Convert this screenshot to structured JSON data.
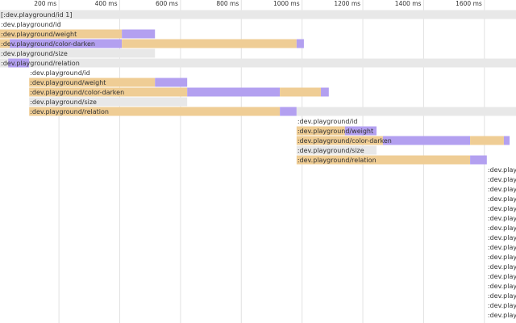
{
  "chart_data": {
    "type": "timeline",
    "xlim": [
      6,
      1704
    ],
    "xticks": [
      {
        "value": 200,
        "label": "200 ms"
      },
      {
        "value": 400,
        "label": "400 ms"
      },
      {
        "value": 600,
        "label": "600 ms"
      },
      {
        "value": 800,
        "label": "800 ms"
      },
      {
        "value": 1000,
        "label": "1000 ms"
      },
      {
        "value": 1200,
        "label": "1200 ms"
      },
      {
        "value": 1400,
        "label": "1400 ms"
      },
      {
        "value": 1600,
        "label": "1600 ms"
      }
    ],
    "grid": true,
    "rows": [
      {
        "label": "[:dev.playground/id 1]",
        "segments": [
          {
            "start": 6,
            "end": 1704,
            "color": "#e8e8e8"
          }
        ]
      },
      {
        "label": ":dev.playground/id",
        "segments": []
      },
      {
        "label": ":dev.playground/weight",
        "segments": [
          {
            "start": 6,
            "end": 407,
            "color": "#efcd95"
          },
          {
            "start": 407,
            "end": 516,
            "color": "#b3a0f0"
          }
        ]
      },
      {
        "label": ":dev.playground/color-darken",
        "segments": [
          {
            "start": 6,
            "end": 38,
            "color": "#efcd95"
          },
          {
            "start": 38,
            "end": 407,
            "color": "#b3a0f0"
          },
          {
            "start": 407,
            "end": 982,
            "color": "#efcd95"
          },
          {
            "start": 982,
            "end": 1006,
            "color": "#b3a0f0"
          }
        ]
      },
      {
        "label": ":dev.playground/size",
        "segments": [
          {
            "start": 6,
            "end": 516,
            "color": "#e8e8e8"
          }
        ]
      },
      {
        "label": ":dev.playground/relation",
        "segments": [
          {
            "start": 6,
            "end": 33,
            "color": "#e8e8e8"
          },
          {
            "start": 33,
            "end": 102,
            "color": "#b3a0f0"
          },
          {
            "start": 102,
            "end": 1704,
            "color": "#e8e8e8"
          }
        ]
      },
      {
        "label": ":dev.playground/id",
        "segments": []
      },
      {
        "label": ":dev.playground/weight",
        "segments": [
          {
            "start": 102,
            "end": 516,
            "color": "#efcd95"
          },
          {
            "start": 516,
            "end": 622,
            "color": "#b3a0f0"
          }
        ]
      },
      {
        "label": ":dev.playground/color-darken",
        "segments": [
          {
            "start": 102,
            "end": 622,
            "color": "#efcd95"
          },
          {
            "start": 622,
            "end": 927,
            "color": "#b3a0f0"
          },
          {
            "start": 927,
            "end": 1062,
            "color": "#efcd95"
          },
          {
            "start": 1062,
            "end": 1088,
            "color": "#b3a0f0"
          }
        ]
      },
      {
        "label": ":dev.playground/size",
        "segments": [
          {
            "start": 102,
            "end": 622,
            "color": "#e8e8e8"
          }
        ]
      },
      {
        "label": ":dev.playground/relation",
        "segments": [
          {
            "start": 102,
            "end": 927,
            "color": "#efcd95"
          },
          {
            "start": 927,
            "end": 982,
            "color": "#b3a0f0"
          },
          {
            "start": 982,
            "end": 1704,
            "color": "#e8e8e8"
          }
        ]
      },
      {
        "label": ":dev.playground/id",
        "segments": []
      },
      {
        "label": ":dev.playground/weight",
        "segments": [
          {
            "start": 982,
            "end": 1141,
            "color": "#efcd95"
          },
          {
            "start": 1141,
            "end": 1245,
            "color": "#b3a0f0"
          }
        ]
      },
      {
        "label": ":dev.playground/color-darken",
        "segments": [
          {
            "start": 982,
            "end": 1266,
            "color": "#efcd95"
          },
          {
            "start": 1266,
            "end": 1553,
            "color": "#b3a0f0"
          },
          {
            "start": 1553,
            "end": 1664,
            "color": "#efcd95"
          },
          {
            "start": 1664,
            "end": 1683,
            "color": "#b3a0f0"
          }
        ]
      },
      {
        "label": ":dev.playground/size",
        "segments": [
          {
            "start": 982,
            "end": 1245,
            "color": "#e8e8e8"
          }
        ]
      },
      {
        "label": ":dev.playground/relation",
        "segments": [
          {
            "start": 982,
            "end": 1553,
            "color": "#efcd95"
          },
          {
            "start": 1553,
            "end": 1608,
            "color": "#b3a0f0"
          }
        ]
      },
      {
        "label": ":dev.playg",
        "segments": []
      },
      {
        "label": ":dev.playg",
        "segments": []
      },
      {
        "label": ":dev.playg",
        "segments": []
      },
      {
        "label": ":dev.playg",
        "segments": []
      },
      {
        "label": ":dev.playg",
        "segments": []
      },
      {
        "label": ":dev.playg",
        "segments": []
      },
      {
        "label": ":dev.playg",
        "segments": []
      },
      {
        "label": ":dev.playg",
        "segments": []
      },
      {
        "label": ":dev.playg",
        "segments": []
      },
      {
        "label": ":dev.playg",
        "segments": []
      },
      {
        "label": ":dev.playg",
        "segments": []
      },
      {
        "label": ":dev.playg",
        "segments": []
      },
      {
        "label": ":dev.playg",
        "segments": []
      },
      {
        "label": ":dev.playg",
        "segments": []
      },
      {
        "label": ":dev.playg",
        "segments": []
      },
      {
        "label": ":dev.playg",
        "segments": []
      }
    ]
  }
}
